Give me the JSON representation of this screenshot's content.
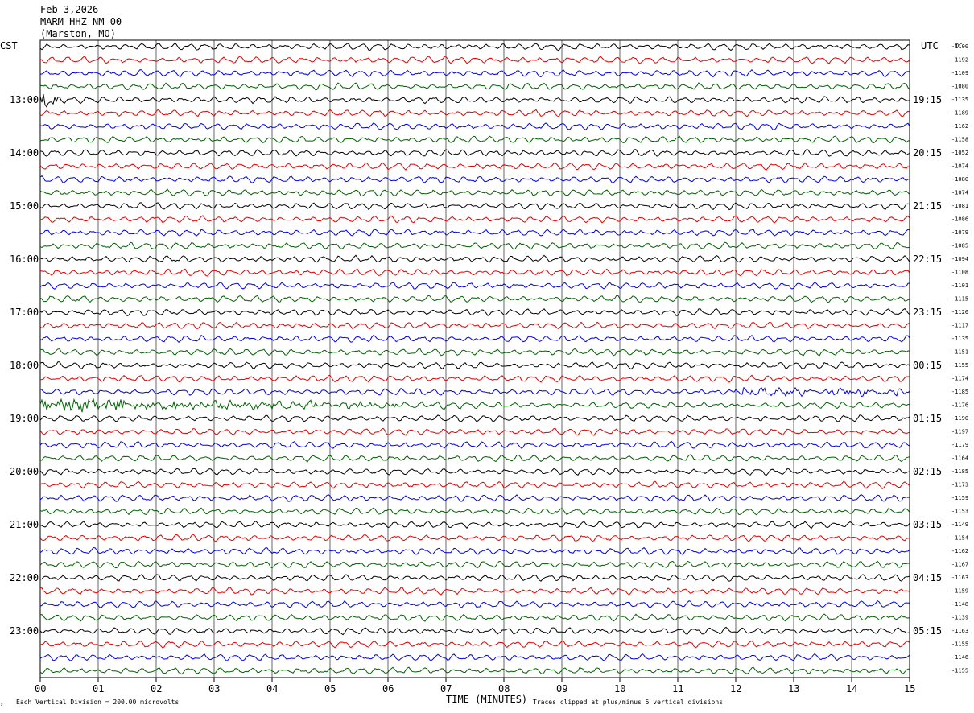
{
  "header": {
    "date": "Feb 3,2026",
    "station": "MARM HHZ NM 00",
    "location": "(Marston, MO)"
  },
  "left_zone_label": "CST",
  "right_zone_label": "UTC",
  "dc_header": "DC",
  "footer": {
    "scale_note": "Each Vertical Division =  200.00 microvolts",
    "xlabel": "TIME (MINUTES)",
    "clip_note": "Traces clipped at plus/minus 5 vertical divisions",
    "corner_mark": "↕"
  },
  "colors": [
    "#000000",
    "#e00000",
    "#0000e0",
    "#006000"
  ],
  "chart_data": {
    "type": "line",
    "title": "",
    "xlabel": "TIME (MINUTES)",
    "ylabel": "",
    "x_ticks": [
      "00",
      "01",
      "02",
      "03",
      "04",
      "05",
      "06",
      "07",
      "08",
      "09",
      "10",
      "11",
      "12",
      "13",
      "14",
      "15"
    ],
    "xlim": [
      0,
      15
    ],
    "traces_per_hour": 4,
    "trace_count": 48,
    "left_hour_labels": [
      "13:00",
      "14:00",
      "15:00",
      "16:00",
      "17:00",
      "18:00",
      "19:00",
      "20:00",
      "21:00",
      "22:00",
      "23:00"
    ],
    "right_hour_labels": [
      "19:15",
      "20:15",
      "21:15",
      "22:15",
      "23:15",
      "00:15",
      "01:15",
      "02:15",
      "03:15",
      "04:15",
      "05:15"
    ],
    "dc_offsets": [
      "-1100",
      "-1192",
      "-1109",
      "-1080",
      "-1135",
      "-1189",
      "-1162",
      "-1158",
      "-1052",
      "-1074",
      "-1080",
      "-1074",
      "-1081",
      "-1086",
      "-1079",
      "-1085",
      "-1094",
      "-1108",
      "-1101",
      "-1115",
      "-1120",
      "-1117",
      "-1135",
      "-1151",
      "-1155",
      "-1174",
      "-1185",
      "-1176",
      "-1190",
      "-1197",
      "-1179",
      "-1164",
      "-1185",
      "-1173",
      "-1159",
      "-1153",
      "-1149",
      "-1154",
      "-1162",
      "-1167",
      "-1163",
      "-1159",
      "-1148",
      "-1139",
      "-1163",
      "-1155",
      "-1146",
      "-1155"
    ],
    "events": [
      {
        "trace": 4,
        "start_min": 0.0,
        "end_min": 0.3,
        "amplitude": "large"
      },
      {
        "trace": 26,
        "start_min": 12.0,
        "end_min": 15.0,
        "amplitude": "moderate"
      },
      {
        "trace": 27,
        "start_min": 0.0,
        "end_min": 7.0,
        "amplitude": "large"
      }
    ],
    "grid": true
  }
}
